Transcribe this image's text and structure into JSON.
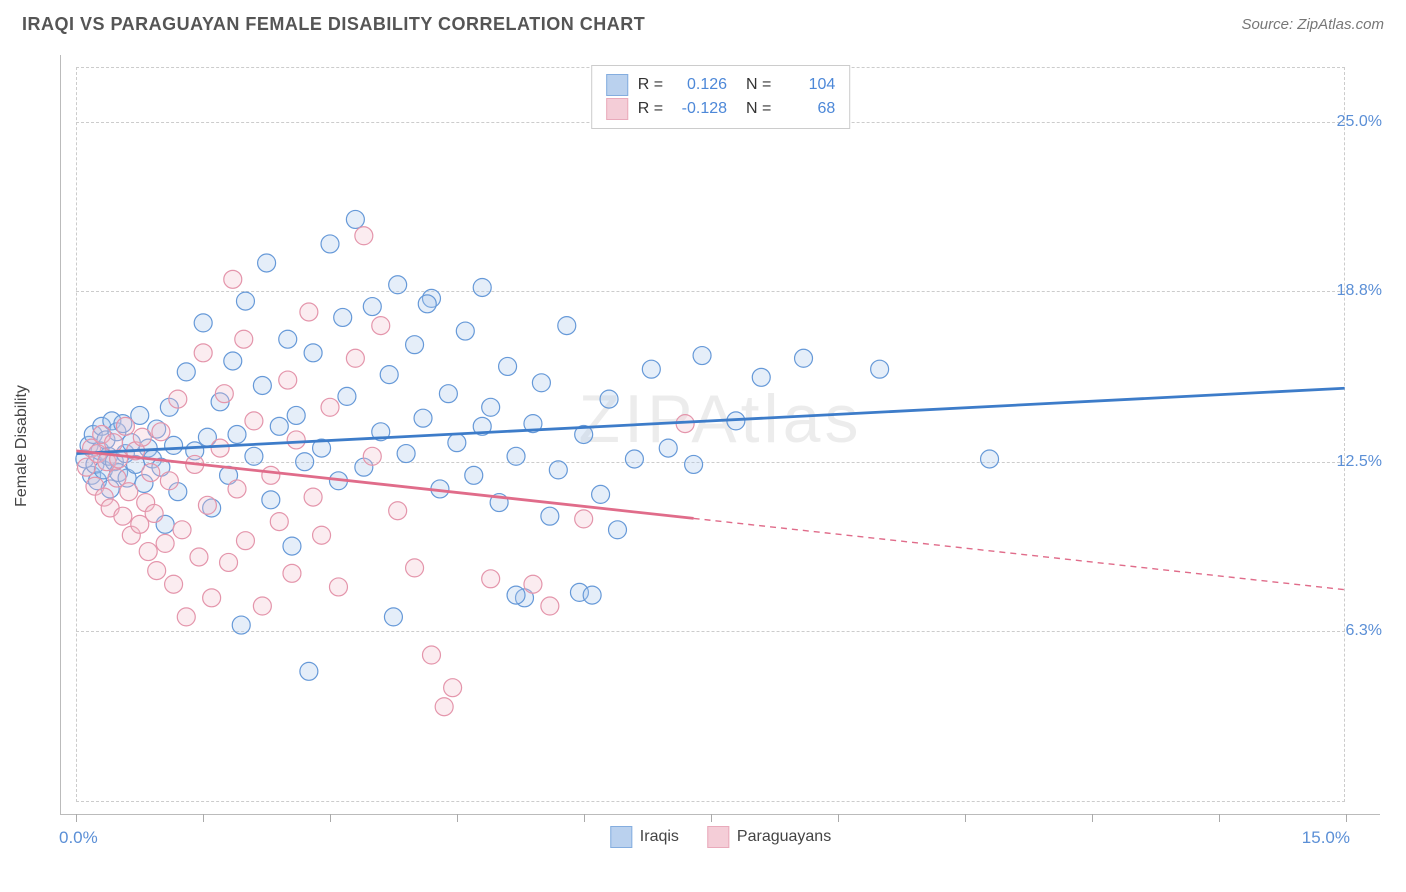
{
  "title": "IRAQI VS PARAGUAYAN FEMALE DISABILITY CORRELATION CHART",
  "source_label": "Source: ZipAtlas.com",
  "watermark": "ZIPAtlas",
  "y_axis_label": "Female Disability",
  "chart": {
    "type": "scatter",
    "xlim": [
      0,
      15
    ],
    "ylim": [
      0,
      27
    ],
    "x_tick_positions": [
      0,
      1.5,
      3,
      4.5,
      6,
      7.5,
      9,
      10.5,
      12,
      13.5,
      15
    ],
    "x_start_label": "0.0%",
    "x_end_label": "15.0%",
    "y_ticks": [
      {
        "v": 6.3,
        "label": "6.3%"
      },
      {
        "v": 12.5,
        "label": "12.5%"
      },
      {
        "v": 18.8,
        "label": "18.8%"
      },
      {
        "v": 25.0,
        "label": "25.0%"
      }
    ],
    "background_color": "#ffffff",
    "grid_color": "#cccccc",
    "marker_radius": 9,
    "marker_stroke_width": 1.2,
    "marker_fill_opacity": 0.3,
    "line_width": 2.8,
    "dash_pattern": "6,5",
    "series": [
      {
        "name": "Iraqis",
        "color_stroke": "#6699d8",
        "color_fill": "#a9c6ea",
        "line_color": "#3d7cc9",
        "R": "0.126",
        "N": "104",
        "trend": {
          "x1": 0,
          "y1": 12.8,
          "x2": 15,
          "y2": 15.2,
          "solid_until_x": 15
        },
        "points": [
          [
            0.1,
            12.6
          ],
          [
            0.15,
            13.1
          ],
          [
            0.18,
            12.0
          ],
          [
            0.2,
            13.5
          ],
          [
            0.22,
            12.4
          ],
          [
            0.25,
            11.8
          ],
          [
            0.28,
            12.9
          ],
          [
            0.3,
            13.8
          ],
          [
            0.32,
            12.2
          ],
          [
            0.35,
            13.3
          ],
          [
            0.38,
            12.7
          ],
          [
            0.4,
            11.5
          ],
          [
            0.42,
            14.0
          ],
          [
            0.45,
            12.5
          ],
          [
            0.48,
            13.6
          ],
          [
            0.5,
            12.1
          ],
          [
            0.55,
            13.9
          ],
          [
            0.58,
            12.8
          ],
          [
            0.6,
            11.9
          ],
          [
            0.65,
            13.2
          ],
          [
            0.7,
            12.4
          ],
          [
            0.75,
            14.2
          ],
          [
            0.8,
            11.7
          ],
          [
            0.85,
            13.0
          ],
          [
            0.9,
            12.6
          ],
          [
            0.95,
            13.7
          ],
          [
            1.0,
            12.3
          ],
          [
            1.05,
            10.2
          ],
          [
            1.1,
            14.5
          ],
          [
            1.15,
            13.1
          ],
          [
            1.2,
            11.4
          ],
          [
            1.3,
            15.8
          ],
          [
            1.4,
            12.9
          ],
          [
            1.5,
            17.6
          ],
          [
            1.55,
            13.4
          ],
          [
            1.6,
            10.8
          ],
          [
            1.7,
            14.7
          ],
          [
            1.8,
            12.0
          ],
          [
            1.85,
            16.2
          ],
          [
            1.9,
            13.5
          ],
          [
            1.95,
            6.5
          ],
          [
            2.0,
            18.4
          ],
          [
            2.1,
            12.7
          ],
          [
            2.2,
            15.3
          ],
          [
            2.25,
            19.8
          ],
          [
            2.3,
            11.1
          ],
          [
            2.4,
            13.8
          ],
          [
            2.5,
            17.0
          ],
          [
            2.55,
            9.4
          ],
          [
            2.6,
            14.2
          ],
          [
            2.7,
            12.5
          ],
          [
            2.75,
            4.8
          ],
          [
            2.8,
            16.5
          ],
          [
            2.9,
            13.0
          ],
          [
            3.0,
            20.5
          ],
          [
            3.1,
            11.8
          ],
          [
            3.15,
            17.8
          ],
          [
            3.2,
            14.9
          ],
          [
            3.3,
            21.4
          ],
          [
            3.4,
            12.3
          ],
          [
            3.5,
            18.2
          ],
          [
            3.6,
            13.6
          ],
          [
            3.7,
            15.7
          ],
          [
            3.75,
            6.8
          ],
          [
            3.8,
            19.0
          ],
          [
            3.9,
            12.8
          ],
          [
            4.0,
            16.8
          ],
          [
            4.1,
            14.1
          ],
          [
            4.2,
            18.5
          ],
          [
            4.3,
            11.5
          ],
          [
            4.4,
            15.0
          ],
          [
            4.5,
            13.2
          ],
          [
            4.6,
            17.3
          ],
          [
            4.7,
            12.0
          ],
          [
            4.8,
            18.9
          ],
          [
            4.9,
            14.5
          ],
          [
            5.0,
            11.0
          ],
          [
            5.1,
            16.0
          ],
          [
            5.2,
            12.7
          ],
          [
            5.3,
            7.5
          ],
          [
            5.4,
            13.9
          ],
          [
            5.5,
            15.4
          ],
          [
            5.6,
            10.5
          ],
          [
            5.7,
            12.2
          ],
          [
            5.8,
            17.5
          ],
          [
            5.95,
            7.7
          ],
          [
            6.0,
            13.5
          ],
          [
            6.2,
            11.3
          ],
          [
            6.3,
            14.8
          ],
          [
            6.4,
            10.0
          ],
          [
            6.6,
            12.6
          ],
          [
            6.8,
            15.9
          ],
          [
            7.0,
            13.0
          ],
          [
            7.3,
            12.4
          ],
          [
            7.4,
            16.4
          ],
          [
            7.8,
            14.0
          ],
          [
            8.1,
            15.6
          ],
          [
            8.6,
            16.3
          ],
          [
            9.5,
            15.9
          ],
          [
            10.8,
            12.6
          ],
          [
            6.1,
            7.6
          ],
          [
            5.2,
            7.6
          ],
          [
            4.8,
            13.8
          ],
          [
            4.15,
            18.3
          ]
        ]
      },
      {
        "name": "Paraguayans",
        "color_stroke": "#e495ab",
        "color_fill": "#f2c1ce",
        "line_color": "#e06c8a",
        "R": "-0.128",
        "N": "68",
        "trend": {
          "x1": 0,
          "y1": 12.9,
          "x2": 15,
          "y2": 7.8,
          "solid_until_x": 7.3
        },
        "points": [
          [
            0.12,
            12.3
          ],
          [
            0.18,
            13.0
          ],
          [
            0.22,
            11.6
          ],
          [
            0.25,
            12.8
          ],
          [
            0.3,
            13.5
          ],
          [
            0.33,
            11.2
          ],
          [
            0.36,
            12.5
          ],
          [
            0.4,
            10.8
          ],
          [
            0.44,
            13.2
          ],
          [
            0.48,
            11.9
          ],
          [
            0.5,
            12.6
          ],
          [
            0.55,
            10.5
          ],
          [
            0.58,
            13.8
          ],
          [
            0.62,
            11.4
          ],
          [
            0.65,
            9.8
          ],
          [
            0.7,
            12.9
          ],
          [
            0.75,
            10.2
          ],
          [
            0.78,
            13.4
          ],
          [
            0.82,
            11.0
          ],
          [
            0.85,
            9.2
          ],
          [
            0.88,
            12.1
          ],
          [
            0.92,
            10.6
          ],
          [
            0.95,
            8.5
          ],
          [
            1.0,
            13.6
          ],
          [
            1.05,
            9.5
          ],
          [
            1.1,
            11.8
          ],
          [
            1.15,
            8.0
          ],
          [
            1.2,
            14.8
          ],
          [
            1.25,
            10.0
          ],
          [
            1.3,
            6.8
          ],
          [
            1.4,
            12.4
          ],
          [
            1.45,
            9.0
          ],
          [
            1.5,
            16.5
          ],
          [
            1.55,
            10.9
          ],
          [
            1.6,
            7.5
          ],
          [
            1.7,
            13.0
          ],
          [
            1.75,
            15.0
          ],
          [
            1.8,
            8.8
          ],
          [
            1.85,
            19.2
          ],
          [
            1.9,
            11.5
          ],
          [
            1.98,
            17.0
          ],
          [
            2.0,
            9.6
          ],
          [
            2.1,
            14.0
          ],
          [
            2.2,
            7.2
          ],
          [
            2.3,
            12.0
          ],
          [
            2.4,
            10.3
          ],
          [
            2.5,
            15.5
          ],
          [
            2.55,
            8.4
          ],
          [
            2.6,
            13.3
          ],
          [
            2.75,
            18.0
          ],
          [
            2.8,
            11.2
          ],
          [
            2.9,
            9.8
          ],
          [
            3.0,
            14.5
          ],
          [
            3.1,
            7.9
          ],
          [
            3.3,
            16.3
          ],
          [
            3.4,
            20.8
          ],
          [
            3.5,
            12.7
          ],
          [
            3.6,
            17.5
          ],
          [
            3.8,
            10.7
          ],
          [
            4.0,
            8.6
          ],
          [
            4.2,
            5.4
          ],
          [
            4.35,
            3.5
          ],
          [
            4.45,
            4.2
          ],
          [
            4.9,
            8.2
          ],
          [
            5.4,
            8.0
          ],
          [
            5.6,
            7.2
          ],
          [
            6.0,
            10.4
          ],
          [
            7.2,
            13.9
          ]
        ]
      }
    ]
  },
  "legend_bottom": [
    {
      "label": "Iraqis",
      "fill": "#a9c6ea",
      "stroke": "#6699d8"
    },
    {
      "label": "Paraguayans",
      "fill": "#f2c1ce",
      "stroke": "#e495ab"
    }
  ]
}
